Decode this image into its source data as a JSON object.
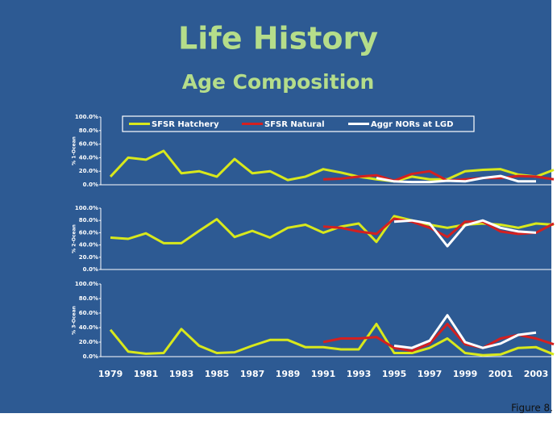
{
  "title": "Life History",
  "subtitle": "Age Composition",
  "caption": "Figure 8.",
  "chart_data": [
    {
      "type": "line",
      "ylabel": "% 1-Ocean",
      "ylim": [
        0,
        100
      ],
      "yticks": [
        {
          "value": 0,
          "label": "0.0%"
        },
        {
          "value": 20,
          "label": "20.0%"
        },
        {
          "value": 40,
          "label": "40.0%"
        },
        {
          "value": 60,
          "label": "60.0%"
        },
        {
          "value": 80,
          "label": "80.0%"
        },
        {
          "value": 100,
          "label": "100.0%"
        }
      ],
      "legend": "top",
      "series": [
        {
          "name": "SFSR Hatchery",
          "color": "#d8e81c",
          "values": [
            12,
            40,
            37,
            50,
            17,
            20,
            12,
            38,
            17,
            20,
            7,
            12,
            23,
            18,
            12,
            8,
            5,
            12,
            8,
            8,
            20,
            22,
            23,
            15,
            12,
            22
          ]
        },
        {
          "name": "SFSR Natural",
          "color": "#d42020",
          "values": [
            null,
            null,
            null,
            null,
            null,
            null,
            null,
            null,
            null,
            null,
            null,
            null,
            8,
            9,
            12,
            14,
            6,
            16,
            20,
            6,
            8,
            10,
            10,
            13,
            12,
            8
          ]
        },
        {
          "name": "Aggr NORs at LGD",
          "color": "#ffffff",
          "values": [
            null,
            null,
            null,
            null,
            null,
            null,
            null,
            null,
            null,
            null,
            null,
            null,
            null,
            null,
            null,
            10,
            5,
            4,
            4,
            6,
            5,
            10,
            13,
            5,
            5,
            null
          ]
        }
      ]
    },
    {
      "type": "line",
      "ylabel": "% 2-Ocean",
      "ylim": [
        0,
        100
      ],
      "yticks": [
        {
          "value": 0,
          "label": "0.0%"
        },
        {
          "value": 20,
          "label": "20.0%"
        },
        {
          "value": 40,
          "label": "40.0%"
        },
        {
          "value": 60,
          "label": "60.0%"
        },
        {
          "value": 80,
          "label": "80.0%"
        },
        {
          "value": 100,
          "label": "100.0%"
        }
      ],
      "series": [
        {
          "color": "#d8e81c",
          "values": [
            52,
            50,
            59,
            43,
            43,
            63,
            82,
            53,
            63,
            52,
            68,
            73,
            60,
            70,
            75,
            45,
            87,
            80,
            73,
            68,
            73,
            75,
            73,
            68,
            75,
            73
          ]
        },
        {
          "color": "#d42020",
          "values": [
            null,
            null,
            null,
            null,
            null,
            null,
            null,
            null,
            null,
            null,
            null,
            null,
            70,
            68,
            62,
            58,
            83,
            78,
            68,
            53,
            78,
            78,
            62,
            58,
            60,
            75
          ]
        },
        {
          "color": "#ffffff",
          "values": [
            null,
            null,
            null,
            null,
            null,
            null,
            null,
            null,
            null,
            null,
            null,
            null,
            null,
            null,
            null,
            null,
            78,
            80,
            75,
            38,
            72,
            80,
            68,
            62,
            60,
            null
          ]
        }
      ]
    },
    {
      "type": "line",
      "ylabel": "% 3-Ocean",
      "ylim": [
        0,
        100
      ],
      "yticks": [
        {
          "value": 0,
          "label": "0.0%"
        },
        {
          "value": 20,
          "label": "20.0%"
        },
        {
          "value": 40,
          "label": "40.0%"
        },
        {
          "value": 60,
          "label": "60.0%"
        },
        {
          "value": 80,
          "label": "80.0%"
        },
        {
          "value": 100,
          "label": "100.0%"
        }
      ],
      "categories": [
        1979,
        null,
        1981,
        null,
        1983,
        null,
        1985,
        null,
        1987,
        null,
        1989,
        null,
        1991,
        null,
        1993,
        null,
        1995,
        null,
        1997,
        null,
        1999,
        null,
        2001,
        null,
        2003,
        null
      ],
      "series": [
        {
          "color": "#d8e81c",
          "values": [
            37,
            7,
            4,
            5,
            38,
            15,
            5,
            6,
            15,
            23,
            23,
            13,
            13,
            10,
            10,
            45,
            5,
            5,
            12,
            25,
            5,
            2,
            3,
            12,
            13,
            3
          ]
        },
        {
          "color": "#d42020",
          "values": [
            null,
            null,
            null,
            null,
            null,
            null,
            null,
            null,
            null,
            null,
            null,
            null,
            20,
            25,
            25,
            27,
            12,
            8,
            18,
            45,
            17,
            12,
            25,
            30,
            25,
            17
          ]
        },
        {
          "color": "#ffffff",
          "values": [
            null,
            null,
            null,
            null,
            null,
            null,
            null,
            null,
            null,
            null,
            null,
            null,
            null,
            null,
            null,
            null,
            15,
            12,
            22,
            57,
            20,
            12,
            18,
            30,
            33,
            null
          ]
        }
      ]
    }
  ]
}
